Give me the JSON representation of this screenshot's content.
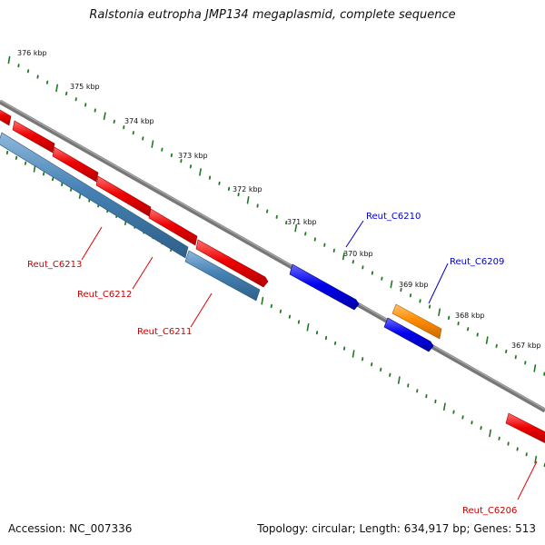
{
  "title": "Ralstonia eutropha JMP134 megaplasmid, complete sequence",
  "accession": "Accession: NC_007336",
  "summary": "Topology: circular; Length: 634,917 bp; Genes: 513",
  "colors": {
    "backbone": "#7a7a7a",
    "tick": "#1e7a1e",
    "red": "#ee0000",
    "steel": "#4682b4",
    "blue": "#0000ee",
    "orange": "#ff8c00"
  },
  "kbp_labels": [
    "376 kbp",
    "375 kbp",
    "374 kbp",
    "373 kbp",
    "372 kbp",
    "371 kbp",
    "370 kbp",
    "369 kbp",
    "368 kbp",
    "367 kbp"
  ],
  "genes": [
    {
      "name": "Reut_C6213",
      "color": "red"
    },
    {
      "name": "Reut_C6212",
      "color": "red"
    },
    {
      "name": "Reut_C6211",
      "color": "red"
    },
    {
      "name": "Reut_C6210",
      "color": "blue"
    },
    {
      "name": "Reut_C6209",
      "color": "blue"
    },
    {
      "name": "Reut_C6206",
      "color": "red"
    }
  ]
}
